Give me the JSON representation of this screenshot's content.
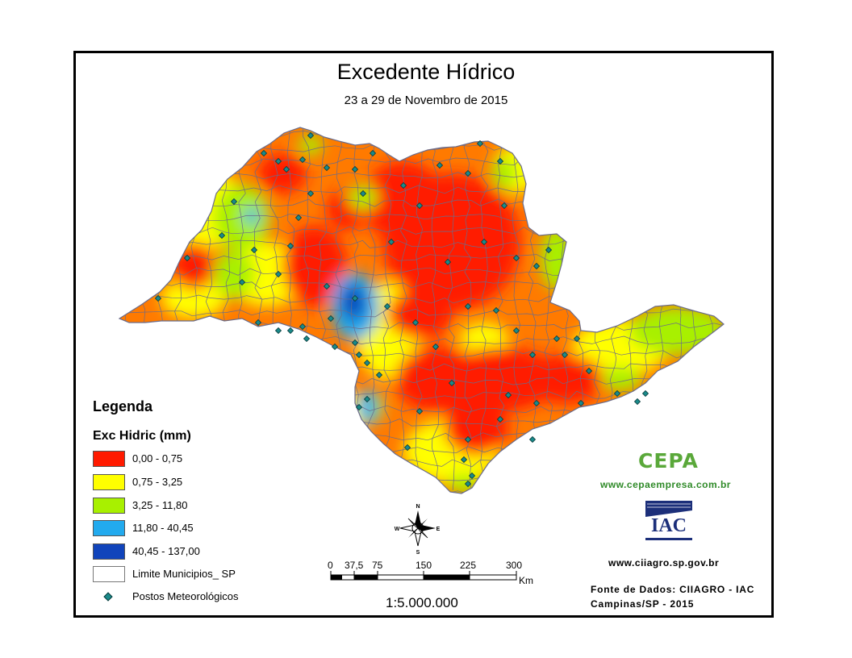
{
  "map": {
    "title": "Excedente Hídrico",
    "subtitle": "23 a 29 de Novembro de 2015",
    "scale_ratio": "1:5.000.000",
    "scale_ticks": [
      "0",
      "37,5",
      "75",
      "150",
      "225",
      "300"
    ],
    "scale_unit": "Km",
    "north_arrow": {
      "N": "N",
      "S": "S",
      "E": "E",
      "W": "W"
    },
    "colors": {
      "class1": "#ff1a00",
      "class2": "#ffff00",
      "class3": "#a8f000",
      "class4": "#22aaee",
      "class5": "#1144bb",
      "boundary": "#6b6b8a",
      "station": "#1a8a8a"
    }
  },
  "legend": {
    "heading": "Legenda",
    "subtitle": "Exc Hidric (mm)",
    "items": [
      {
        "label": "0,00 - 0,75",
        "color": "#ff1a00"
      },
      {
        "label": "0,75 - 3,25",
        "color": "#ffff00"
      },
      {
        "label": "3,25 - 11,80",
        "color": "#a8f000"
      },
      {
        "label": "11,80 - 40,45",
        "color": "#22aaee"
      },
      {
        "label": "40,45 - 137,00",
        "color": "#1144bb"
      },
      {
        "label": "Limite Municipios_ SP",
        "color": "#ffffff"
      },
      {
        "label": "Postos Meteorológicos",
        "color": "#1a8a8a"
      }
    ]
  },
  "credits": {
    "cepa_logo_text": "CEPA",
    "cepa_url": "www.cepaempresa.com.br",
    "iac_logo_text": "IAC",
    "iac_url": "www.ciiagro.sp.gov.br",
    "source_line1": "Fonte de Dados: CIIAGRO - IAC",
    "source_line2": "Campinas/SP - 2015"
  }
}
